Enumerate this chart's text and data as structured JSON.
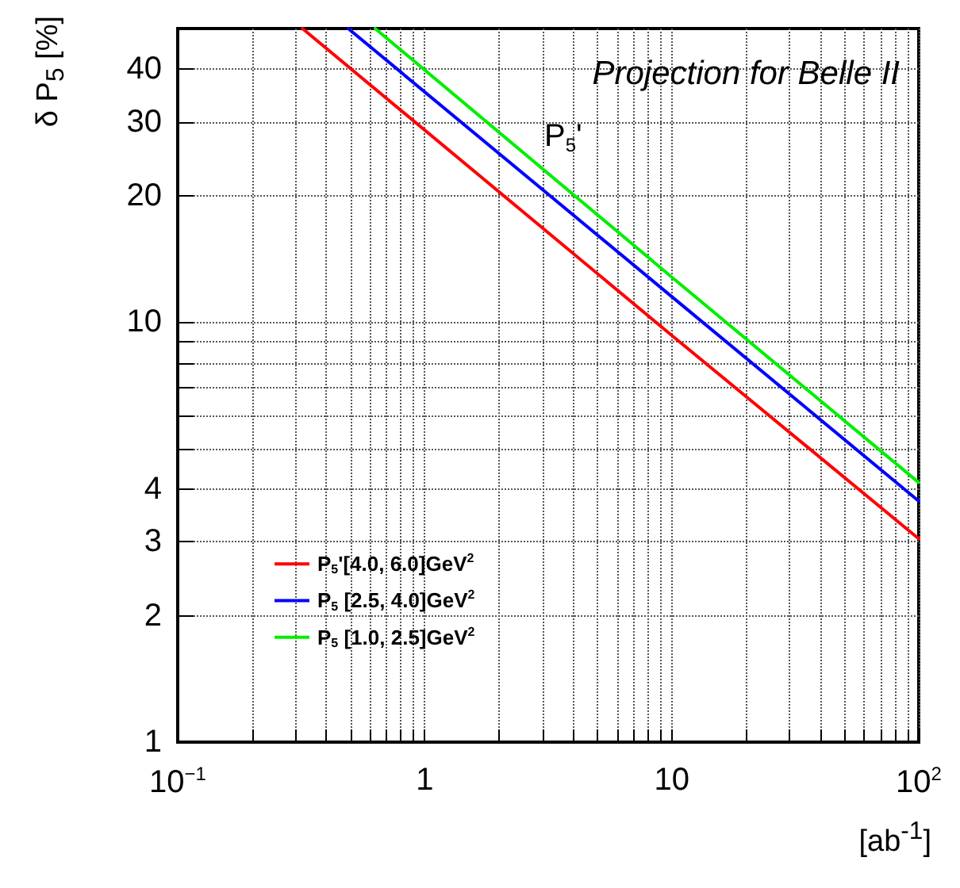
{
  "chart_data": {
    "type": "line",
    "ylabel": "δ P$_{5}$ [%]",
    "xlabel": "[ab$^{-1}$]",
    "log": "xy",
    "grid": true,
    "legend": "left",
    "marker": "none",
    "line_style": "solid",
    "annotations": [
      "Projection for Belle II",
      "P$_{5}$'"
    ],
    "xlim": [
      0.1,
      100
    ],
    "xticks": [
      {
        "value": 0.1,
        "label": "10$^{−1}$"
      },
      {
        "value": 0.2,
        "label": null
      },
      {
        "value": 0.3,
        "label": null
      },
      {
        "value": 0.4,
        "label": null
      },
      {
        "value": 0.5,
        "label": null
      },
      {
        "value": 0.6,
        "label": null
      },
      {
        "value": 0.7,
        "label": null
      },
      {
        "value": 0.8,
        "label": null
      },
      {
        "value": 0.9,
        "label": null
      },
      1,
      {
        "value": 2,
        "label": null
      },
      {
        "value": 3,
        "label": null
      },
      {
        "value": 4,
        "label": null
      },
      {
        "value": 5,
        "label": null
      },
      {
        "value": 6,
        "label": null
      },
      {
        "value": 7,
        "label": null
      },
      {
        "value": 8,
        "label": null
      },
      {
        "value": 9,
        "label": null
      },
      10,
      {
        "value": 20,
        "label": null
      },
      {
        "value": 30,
        "label": null
      },
      {
        "value": 40,
        "label": null
      },
      {
        "value": 50,
        "label": null
      },
      {
        "value": 60,
        "label": null
      },
      {
        "value": 70,
        "label": null
      },
      {
        "value": 80,
        "label": null
      },
      {
        "value": 90,
        "label": null
      },
      {
        "value": 100,
        "label": "10$^{2}$"
      }
    ],
    "ylim": [
      1,
      50
    ],
    "yticks": [
      1,
      2,
      3,
      4,
      {
        "value": 5,
        "label": null
      },
      {
        "value": 6,
        "label": null
      },
      {
        "value": 7,
        "label": null
      },
      {
        "value": 8,
        "label": null
      },
      {
        "value": 9,
        "label": null
      },
      10,
      20,
      30,
      40
    ],
    "series": [
      {
        "name": "P$_{5}$'[4.0, 6.0]GeV$^{2}$",
        "color": "#ff0000",
        "x": [
          0.32,
          10,
          100
        ],
        "values": [
          50,
          9.3,
          3.05
        ]
      },
      {
        "name": "P$_{5}$ [2.5, 4.0]GeV$^{2}$",
        "color": "#0000ff",
        "x": [
          0.49,
          10,
          100
        ],
        "values": [
          50,
          11.5,
          3.75
        ]
      },
      {
        "name": "P$_{5}$ [1.0, 2.5]GeV$^{2}$",
        "color": "#00ee00",
        "x": [
          0.63,
          10,
          100
        ],
        "values": [
          50,
          12.8,
          4.15
        ]
      }
    ]
  }
}
